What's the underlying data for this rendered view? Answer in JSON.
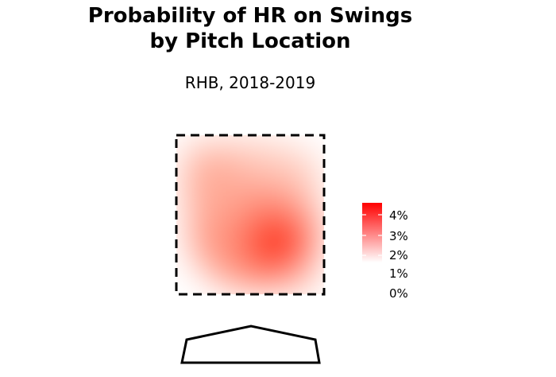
{
  "chart_data": {
    "type": "heatmap",
    "title_lines": [
      "Probability of HR on Swings",
      "by Pitch Location"
    ],
    "subtitle": "RHB, 2018-2019",
    "color_low": "#ffffff",
    "color_high": "#ff0000",
    "legend": {
      "position": "right",
      "ticks": [
        "4%",
        "3%",
        "2%",
        "1%",
        "0%"
      ]
    },
    "grid": false,
    "hotspots": [
      {
        "region": "lower-middle / inside",
        "value_pct": 4.0
      },
      {
        "region": "upper-left / outside",
        "value_pct": 2.0
      }
    ]
  }
}
